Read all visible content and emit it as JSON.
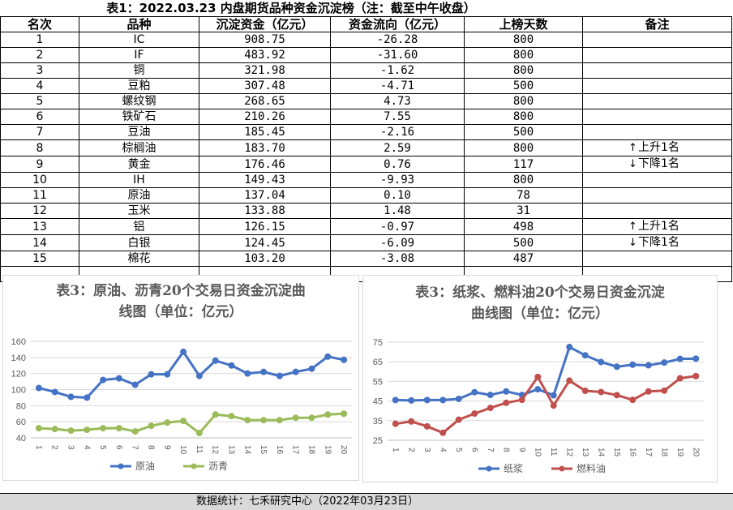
{
  "table": {
    "title": "表1：2022.03.23 内盘期货品种资金沉淀榜（注：截至中午收盘）",
    "headers": [
      "名次",
      "品种",
      "沉淀资金（亿元）",
      "资金流向（亿元）",
      "上榜天数",
      "备注"
    ],
    "rows": [
      {
        "rank": "1",
        "name": "IC",
        "capital": "908.75",
        "flow": "-26.28",
        "days": "800",
        "note": ""
      },
      {
        "rank": "2",
        "name": "IF",
        "capital": "483.92",
        "flow": "-31.60",
        "days": "800",
        "note": ""
      },
      {
        "rank": "3",
        "name": "铜",
        "capital": "321.98",
        "flow": "-1.62",
        "days": "800",
        "note": ""
      },
      {
        "rank": "4",
        "name": "豆粕",
        "capital": "307.48",
        "flow": "-4.71",
        "days": "500",
        "note": ""
      },
      {
        "rank": "5",
        "name": "螺纹钢",
        "capital": "268.65",
        "flow": "4.73",
        "days": "800",
        "note": ""
      },
      {
        "rank": "6",
        "name": "铁矿石",
        "capital": "210.26",
        "flow": "7.55",
        "days": "800",
        "note": ""
      },
      {
        "rank": "7",
        "name": "豆油",
        "capital": "185.45",
        "flow": "-2.16",
        "days": "500",
        "note": ""
      },
      {
        "rank": "8",
        "name": "棕榈油",
        "capital": "183.70",
        "flow": "2.59",
        "days": "800",
        "note": "上升1名",
        "arrow": "↑"
      },
      {
        "rank": "9",
        "name": "黄金",
        "capital": "176.46",
        "flow": "0.76",
        "days": "117",
        "note": "下降1名",
        "arrow": "↓"
      },
      {
        "rank": "10",
        "name": "IH",
        "capital": "149.43",
        "flow": "-9.93",
        "days": "800",
        "note": ""
      },
      {
        "rank": "11",
        "name": "原油",
        "capital": "137.04",
        "flow": "0.10",
        "days": "78",
        "note": ""
      },
      {
        "rank": "12",
        "name": "玉米",
        "capital": "133.88",
        "flow": "1.48",
        "days": "31",
        "note": ""
      },
      {
        "rank": "13",
        "name": "铝",
        "capital": "126.15",
        "flow": "-0.97",
        "days": "498",
        "note": "上升1名",
        "arrow": "↑"
      },
      {
        "rank": "14",
        "name": "白银",
        "capital": "124.45",
        "flow": "-6.09",
        "days": "500",
        "note": "下降1名",
        "arrow": "↓"
      },
      {
        "rank": "15",
        "name": "棉花",
        "capital": "103.20",
        "flow": "-3.08",
        "days": "487",
        "note": ""
      }
    ]
  },
  "chart_data": [
    {
      "type": "line",
      "title_line1": "表3：原油、沥青20个交易日资金沉淀曲",
      "title_line2": "线图（单位：亿元）",
      "x": [
        1,
        2,
        3,
        4,
        5,
        6,
        7,
        8,
        9,
        10,
        11,
        12,
        13,
        14,
        15,
        16,
        17,
        18,
        19,
        20
      ],
      "ylim": [
        40,
        160
      ],
      "yticks": [
        40,
        60,
        80,
        100,
        120,
        140,
        160
      ],
      "legend_position": "bottom",
      "series": [
        {
          "name": "原油",
          "color": "#4472c4",
          "values": [
            102,
            97,
            91,
            90,
            112,
            114,
            106,
            119,
            119,
            147,
            117,
            136,
            130,
            120,
            122,
            117,
            122,
            126,
            141,
            137
          ]
        },
        {
          "name": "沥青",
          "color": "#9bbb59",
          "values": [
            52,
            51,
            49,
            50,
            52,
            52,
            48,
            55,
            59,
            61,
            46,
            69,
            67,
            62,
            62,
            62,
            65,
            65,
            69,
            70
          ]
        }
      ]
    },
    {
      "type": "line",
      "title_line1": "表3：纸浆、燃料油20个交易日资金沉淀",
      "title_line2": "曲线图（单位：亿元）",
      "x": [
        1,
        2,
        3,
        4,
        5,
        6,
        7,
        8,
        9,
        10,
        11,
        12,
        13,
        14,
        15,
        16,
        17,
        18,
        19,
        20
      ],
      "ylim": [
        25,
        75
      ],
      "yticks": [
        25,
        35,
        45,
        55,
        65,
        75
      ],
      "legend_position": "bottom",
      "series": [
        {
          "name": "纸浆",
          "color": "#4472c4",
          "values": [
            45.5,
            45.3,
            45.5,
            45.5,
            46.1,
            49.5,
            48.1,
            49.9,
            48.1,
            51.0,
            47.9,
            72.5,
            68.3,
            64.9,
            62.5,
            63.5,
            63.2,
            64.6,
            66.5,
            66.6
          ]
        },
        {
          "name": "燃料油",
          "color": "#c0504d",
          "values": [
            33.4,
            34.6,
            32.1,
            28.8,
            35.5,
            38.6,
            41.5,
            44.1,
            45.6,
            57.3,
            42.7,
            55.4,
            50.2,
            49.6,
            48.0,
            45.6,
            49.9,
            50.3,
            56.6,
            57.7
          ]
        }
      ]
    }
  ],
  "footer": "数据统计：七禾研究中心（2022年03月23日）"
}
